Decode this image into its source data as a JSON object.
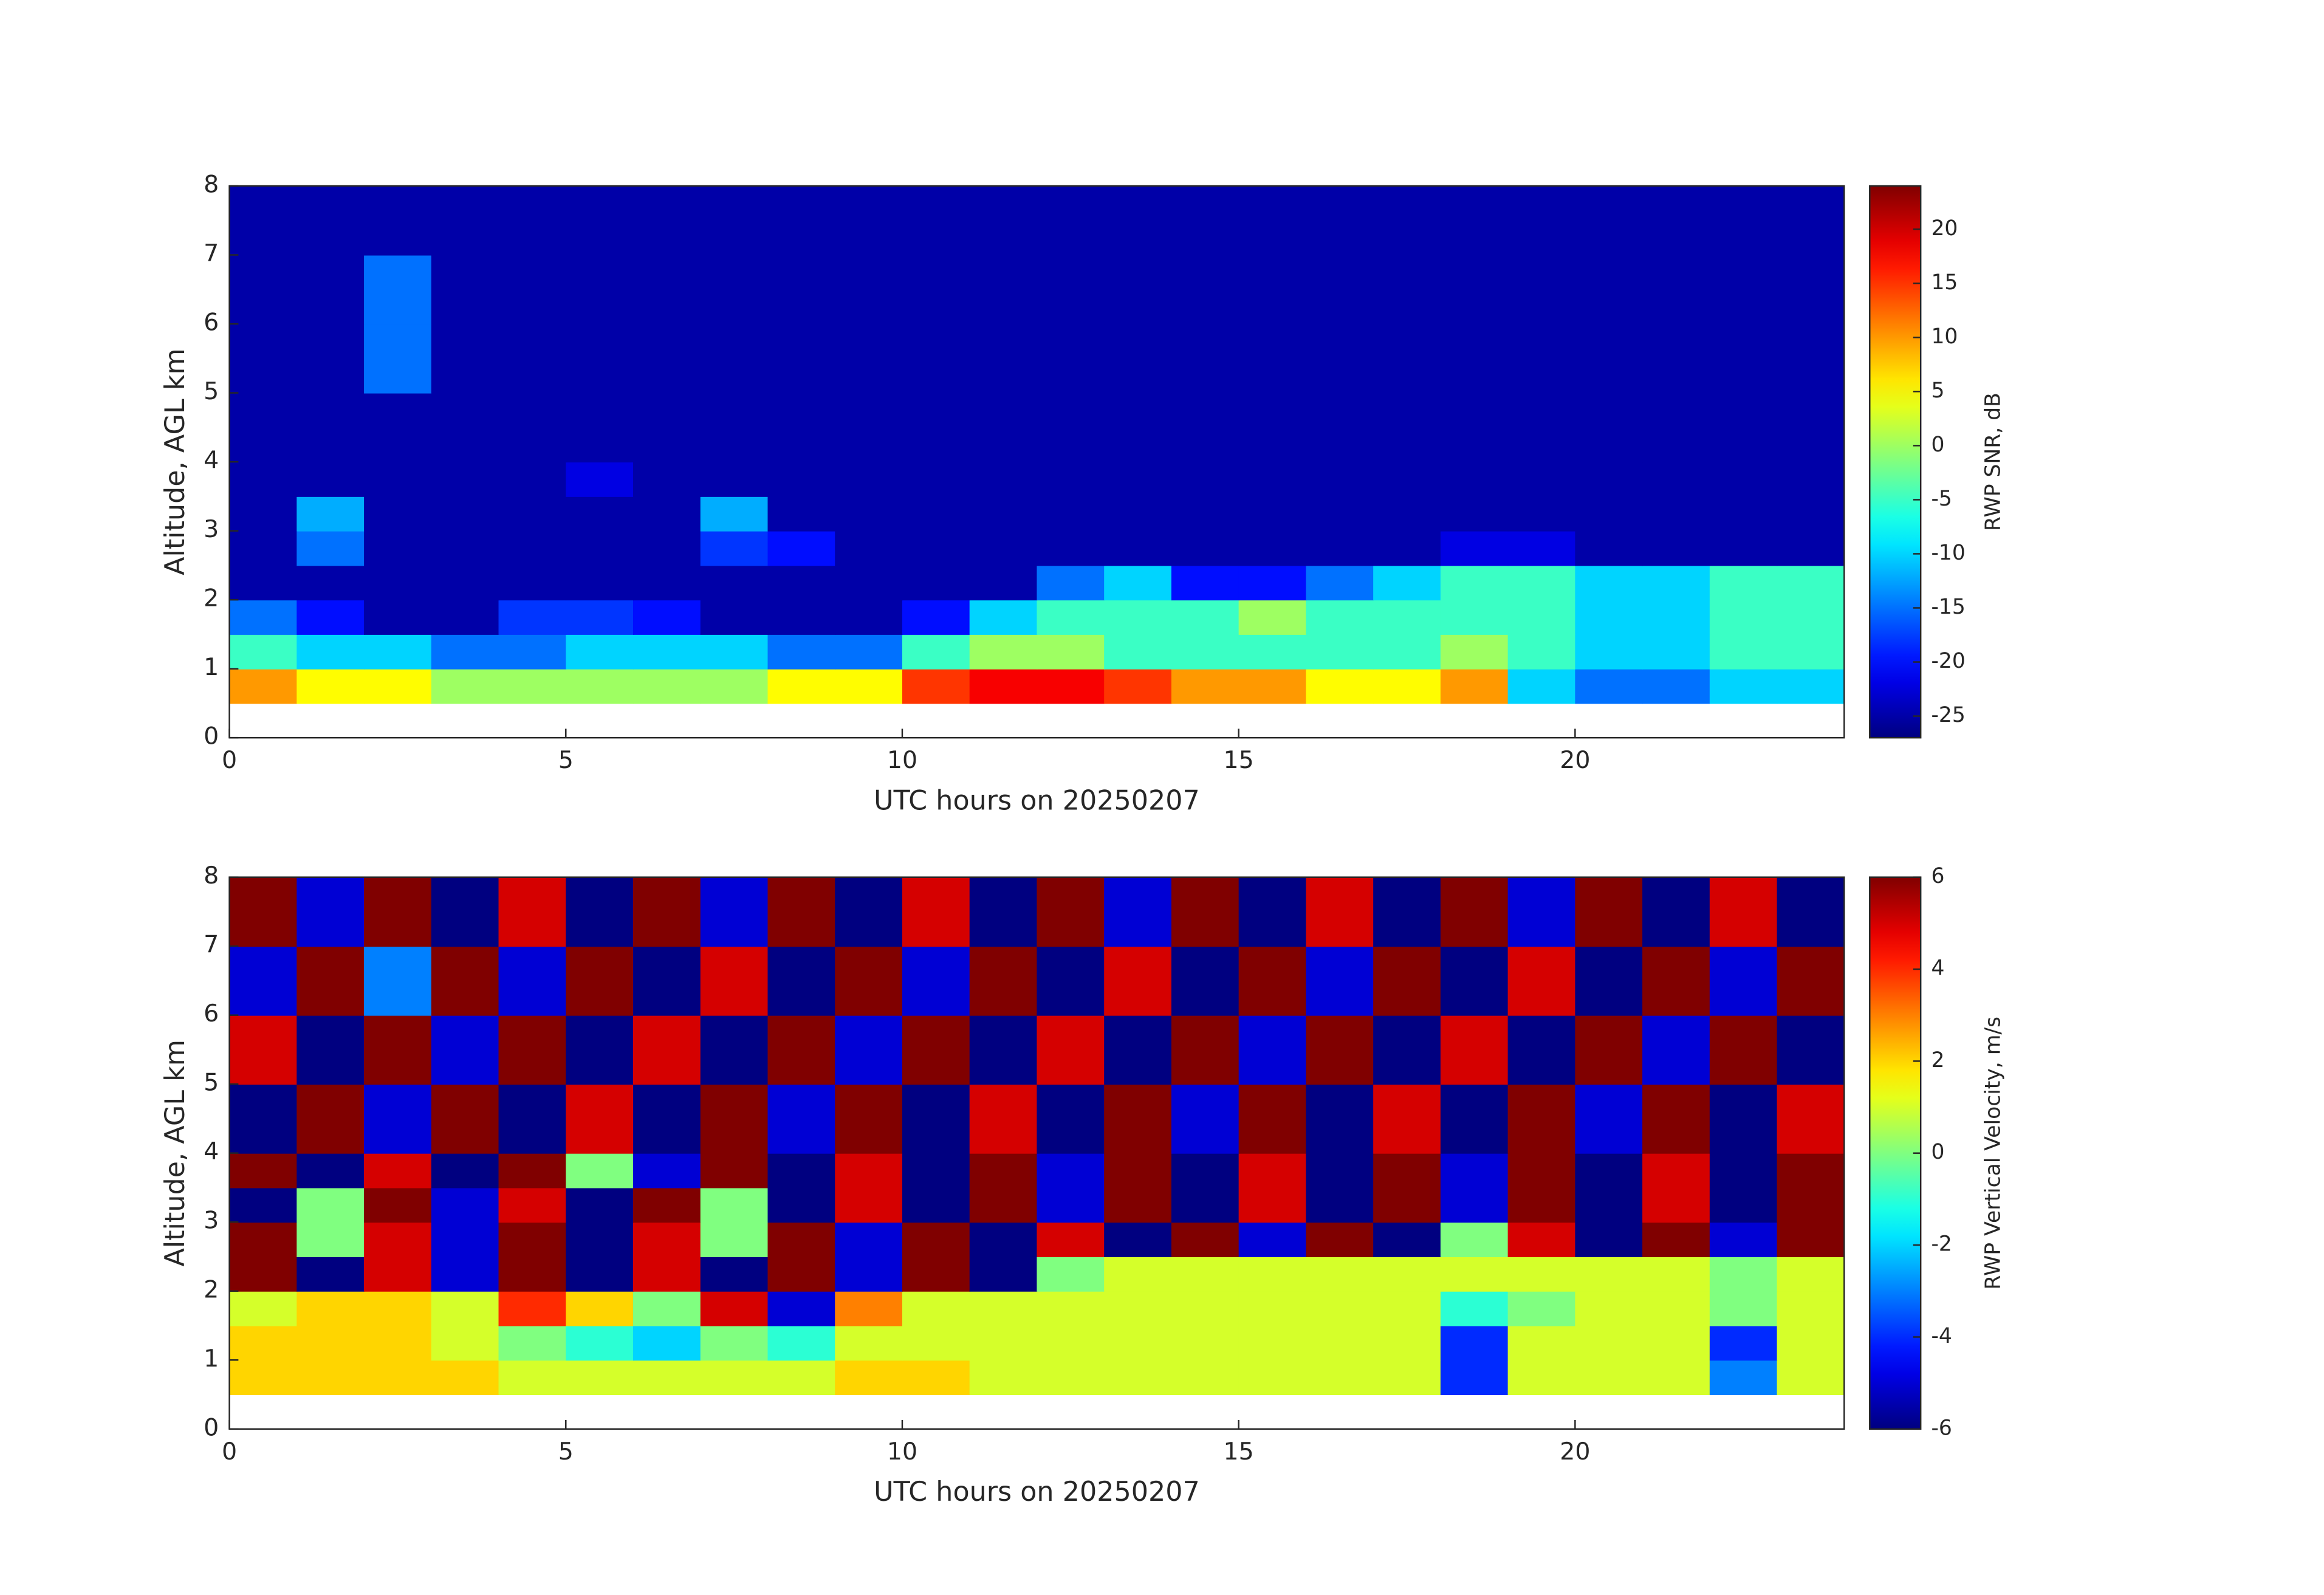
{
  "chart_data": [
    {
      "type": "heatmap",
      "colormap": "jet",
      "xlabel": "UTC hours on 20250207",
      "ylabel": "Altitude, AGL km",
      "xlim": [
        0,
        24
      ],
      "ylim": [
        0,
        8
      ],
      "xticks": [
        0,
        5,
        10,
        15,
        20
      ],
      "yticks": [
        0,
        1,
        2,
        3,
        4,
        5,
        6,
        7,
        8
      ],
      "x_edges": [
        0,
        1,
        2,
        3,
        4,
        5,
        6,
        7,
        8,
        9,
        10,
        11,
        12,
        13,
        14,
        15,
        16,
        17,
        18,
        19,
        20,
        21,
        22,
        23,
        24
      ],
      "y_edges": [
        0.5,
        1,
        1.5,
        2,
        2.5,
        3,
        3.5,
        4,
        5,
        6,
        7,
        8
      ],
      "values": [
        [
          10,
          5,
          5,
          0,
          0,
          0,
          0,
          0,
          5,
          5,
          15,
          18,
          18,
          15,
          10,
          10,
          5,
          5,
          10,
          -10,
          -15,
          -15,
          -10,
          -10
        ],
        [
          -5,
          -10,
          -10,
          -15,
          -15,
          -10,
          -10,
          -10,
          -15,
          -15,
          -5,
          0,
          0,
          -5,
          -5,
          -5,
          -5,
          -5,
          0,
          -5,
          -10,
          -10,
          -5,
          -5
        ],
        [
          -15,
          -20,
          -25,
          -25,
          -18,
          -18,
          -20,
          -25,
          -25,
          -25,
          -20,
          -10,
          -5,
          -5,
          -5,
          0,
          -5,
          -5,
          -5,
          -5,
          -10,
          -10,
          -5,
          -5
        ],
        [
          -25,
          -25,
          -25,
          -25,
          -25,
          -25,
          -25,
          -25,
          -25,
          -25,
          -25,
          -25,
          -15,
          -10,
          -20,
          -20,
          -15,
          -10,
          -5,
          -5,
          -10,
          -10,
          -5,
          -5
        ],
        [
          -25,
          -15,
          -25,
          -25,
          -25,
          -25,
          -25,
          -18,
          -20,
          -25,
          -25,
          -25,
          -25,
          -25,
          -25,
          -25,
          -25,
          -25,
          -22,
          -22,
          -25,
          -25,
          -25,
          -25
        ],
        [
          -25,
          -12,
          -25,
          -25,
          -25,
          -25,
          -25,
          -12,
          -25,
          -25,
          -25,
          -25,
          -25,
          -25,
          -25,
          -25,
          -25,
          -25,
          -25,
          -25,
          -25,
          -25,
          -25,
          -25
        ],
        [
          -25,
          -25,
          -25,
          -25,
          -25,
          -22,
          -25,
          -25,
          -25,
          -25,
          -25,
          -25,
          -25,
          -25,
          -25,
          -25,
          -25,
          -25,
          -25,
          -25,
          -25,
          -25,
          -25,
          -25
        ],
        [
          -25,
          -25,
          -25,
          -25,
          -25,
          -25,
          -25,
          -25,
          -25,
          -25,
          -25,
          -25,
          -25,
          -25,
          -25,
          -25,
          -25,
          -25,
          -25,
          -25,
          -25,
          -25,
          -25,
          -25
        ],
        [
          -25,
          -25,
          -15,
          -25,
          -25,
          -25,
          -25,
          -25,
          -25,
          -25,
          -25,
          -25,
          -25,
          -25,
          -25,
          -25,
          -25,
          -25,
          -25,
          -25,
          -25,
          -25,
          -25,
          -25
        ],
        [
          -25,
          -25,
          -15,
          -25,
          -25,
          -25,
          -25,
          -25,
          -25,
          -25,
          -25,
          -25,
          -25,
          -25,
          -25,
          -25,
          -25,
          -25,
          -25,
          -25,
          -25,
          -25,
          -25,
          -25
        ],
        [
          -25,
          -25,
          -25,
          -25,
          -25,
          -25,
          -25,
          -25,
          -25,
          -25,
          -25,
          -25,
          -25,
          -25,
          -25,
          -25,
          -25,
          -25,
          -25,
          -25,
          -25,
          -25,
          -25,
          -25
        ]
      ],
      "colorbar": {
        "label": "RWP SNR, dB",
        "lim": [
          -27,
          24
        ],
        "ticks": [
          -25,
          -20,
          -15,
          -10,
          -5,
          0,
          5,
          10,
          15,
          20
        ]
      }
    },
    {
      "type": "heatmap",
      "colormap": "jet",
      "xlabel": "UTC hours on 20250207",
      "ylabel": "Altitude, AGL km",
      "xlim": [
        0,
        24
      ],
      "ylim": [
        0,
        8
      ],
      "xticks": [
        0,
        5,
        10,
        15,
        20
      ],
      "yticks": [
        0,
        1,
        2,
        3,
        4,
        5,
        6,
        7,
        8
      ],
      "x_edges": [
        0,
        1,
        2,
        3,
        4,
        5,
        6,
        7,
        8,
        9,
        10,
        11,
        12,
        13,
        14,
        15,
        16,
        17,
        18,
        19,
        20,
        21,
        22,
        23,
        24
      ],
      "y_edges": [
        0.5,
        1,
        1.5,
        2,
        2.5,
        3,
        3.5,
        4,
        5,
        6,
        7,
        8
      ],
      "values": [
        [
          2,
          2,
          2,
          2,
          1,
          1,
          1,
          1,
          1,
          2,
          2,
          1,
          1,
          1,
          1,
          1,
          1,
          1,
          -4,
          1,
          1,
          1,
          -3,
          1
        ],
        [
          2,
          2,
          2,
          1,
          0,
          -1,
          -2,
          0,
          -1,
          1,
          1,
          1,
          1,
          1,
          1,
          1,
          1,
          1,
          -4,
          1,
          1,
          1,
          -4,
          1
        ],
        [
          1,
          2,
          2,
          1,
          4,
          2,
          0,
          5,
          -5,
          3,
          1,
          1,
          1,
          1,
          1,
          1,
          1,
          1,
          -1,
          0,
          1,
          1,
          0,
          1
        ],
        [
          6,
          -6,
          5,
          -5,
          6,
          -6,
          5,
          -6,
          6,
          -5,
          6,
          -6,
          0,
          1,
          1,
          1,
          1,
          1,
          1,
          1,
          1,
          1,
          0,
          1
        ],
        [
          6,
          0,
          5,
          -5,
          6,
          -6,
          5,
          0,
          6,
          -5,
          6,
          -6,
          5,
          -6,
          6,
          -5,
          6,
          -6,
          0,
          5,
          -6,
          6,
          -5,
          6
        ],
        [
          -6,
          0,
          6,
          -5,
          5,
          -6,
          6,
          0,
          -6,
          5,
          -6,
          6,
          -5,
          6,
          -6,
          5,
          -6,
          6,
          -5,
          6,
          -6,
          5,
          -6,
          6
        ],
        [
          6,
          -6,
          5,
          -6,
          6,
          0,
          -5,
          6,
          -6,
          5,
          -6,
          6,
          -5,
          6,
          -6,
          5,
          -6,
          6,
          -5,
          6,
          -6,
          5,
          -6,
          6
        ],
        [
          -6,
          6,
          -5,
          6,
          -6,
          5,
          -6,
          6,
          -5,
          6,
          -6,
          5,
          -6,
          6,
          -5,
          6,
          -6,
          5,
          -6,
          6,
          -5,
          6,
          -6,
          5
        ],
        [
          5,
          -6,
          6,
          -5,
          6,
          -6,
          5,
          -6,
          6,
          -5,
          6,
          -6,
          5,
          -6,
          6,
          -5,
          6,
          -6,
          5,
          -6,
          6,
          -5,
          6,
          -6
        ],
        [
          -5,
          6,
          -3,
          6,
          -5,
          6,
          -6,
          5,
          -6,
          6,
          -5,
          6,
          -6,
          5,
          -6,
          6,
          -5,
          6,
          -6,
          5,
          -6,
          6,
          -5,
          6
        ],
        [
          6,
          -5,
          6,
          -6,
          5,
          -6,
          6,
          -5,
          6,
          -6,
          5,
          -6,
          6,
          -5,
          6,
          -6,
          5,
          -6,
          6,
          -5,
          6,
          -6,
          5,
          -6
        ]
      ],
      "colorbar": {
        "label": "RWP Vertical Velocity, m/s",
        "lim": [
          -6,
          6
        ],
        "ticks": [
          -6,
          -4,
          -2,
          0,
          2,
          4,
          6
        ]
      }
    }
  ]
}
